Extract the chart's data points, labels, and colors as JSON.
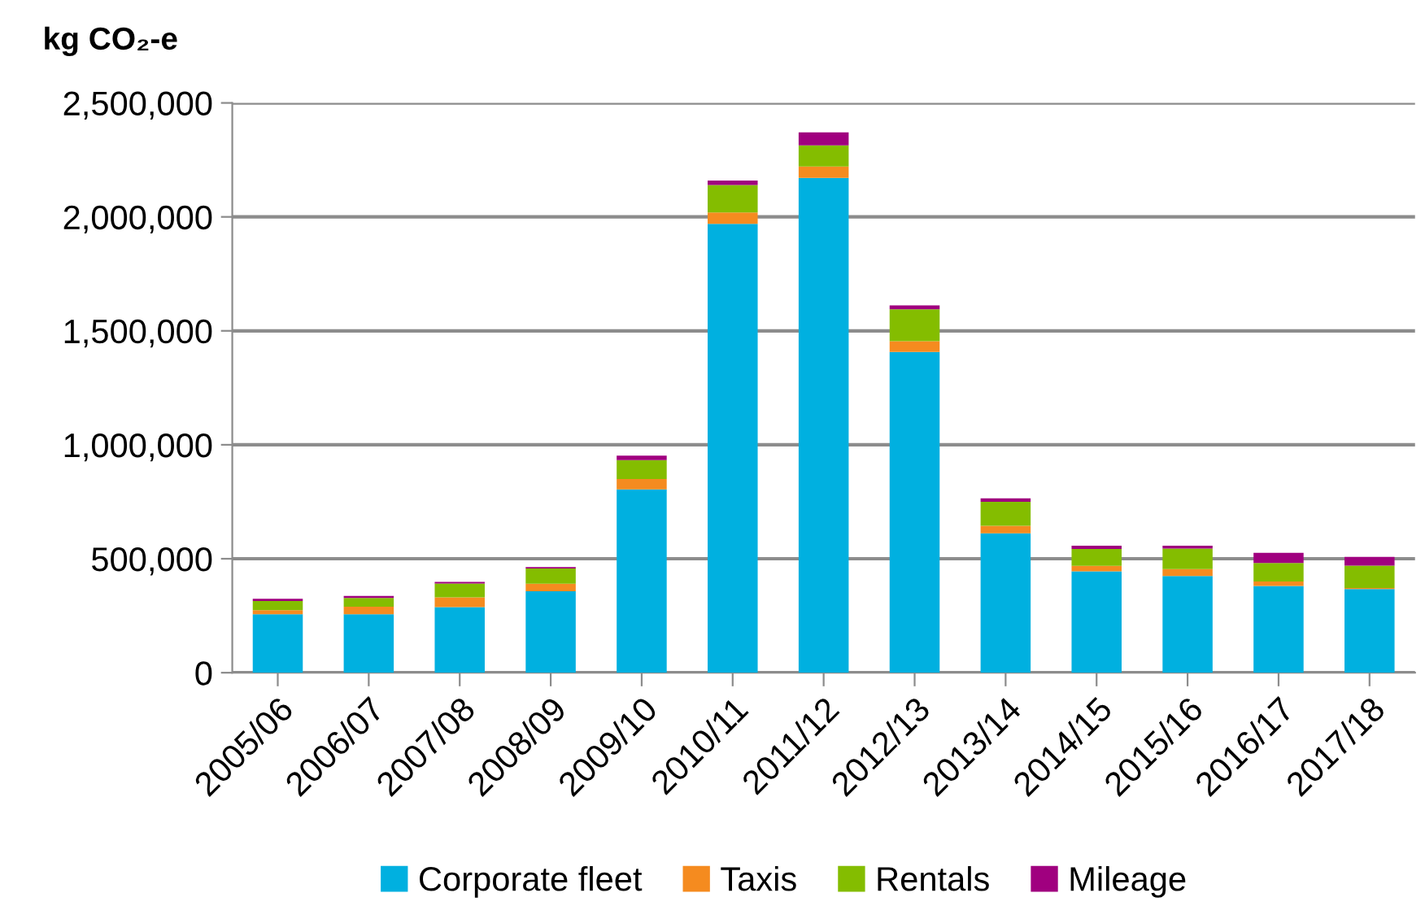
{
  "chart_data": {
    "type": "bar",
    "stacked": true,
    "ylabel": "kg CO₂-e",
    "categories": [
      "2005/06",
      "2006/07",
      "2007/08",
      "2008/09",
      "2009/10",
      "2010/11",
      "2011/12",
      "2012/13",
      "2013/14",
      "2014/15",
      "2015/16",
      "2016/17",
      "2017/18"
    ],
    "series": [
      {
        "name": "Corporate fleet",
        "color": "#00b0e0",
        "values": [
          257000,
          257000,
          288000,
          357000,
          804000,
          1969000,
          2171000,
          1407000,
          612000,
          445000,
          424000,
          381000,
          367000
        ]
      },
      {
        "name": "Taxis",
        "color": "#f58b1f",
        "values": [
          17000,
          33000,
          43000,
          33000,
          46000,
          50000,
          50000,
          48000,
          33000,
          24000,
          31000,
          19000,
          5000
        ]
      },
      {
        "name": "Rentals",
        "color": "#84bd00",
        "values": [
          41000,
          38000,
          60000,
          67000,
          83000,
          121000,
          93000,
          140000,
          105000,
          74000,
          90000,
          81000,
          98000
        ]
      },
      {
        "name": "Mileage",
        "color": "#a0007f",
        "values": [
          9000,
          9000,
          7000,
          7000,
          19000,
          19000,
          57000,
          17000,
          15000,
          14000,
          12000,
          45000,
          38000
        ]
      }
    ],
    "ylim": [
      0,
      2500000
    ],
    "yticks": [
      {
        "value": 0,
        "label": "0"
      },
      {
        "value": 500000,
        "label": "500,000"
      },
      {
        "value": 1000000,
        "label": "1,000,000"
      },
      {
        "value": 1500000,
        "label": "1,500,000"
      },
      {
        "value": 2000000,
        "label": "2,000,000"
      },
      {
        "value": 2500000,
        "label": "2,500,000"
      }
    ],
    "grid": "y",
    "legend": "bottom"
  }
}
